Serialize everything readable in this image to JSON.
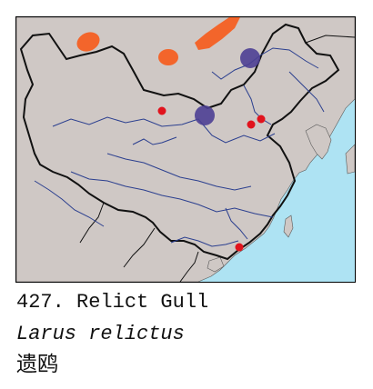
{
  "caption": {
    "number_and_name": "427. Relict Gull",
    "scientific_name": "Larus relictus",
    "chinese_name": "遗鸥"
  },
  "colors": {
    "sea": "#aee3f3",
    "land": "#cfc8c5",
    "border": "#111111",
    "river": "#2b3f8f",
    "breeding_range": "#f3652b",
    "resident": "#4d3f94",
    "record_point": "#e1131d"
  }
}
